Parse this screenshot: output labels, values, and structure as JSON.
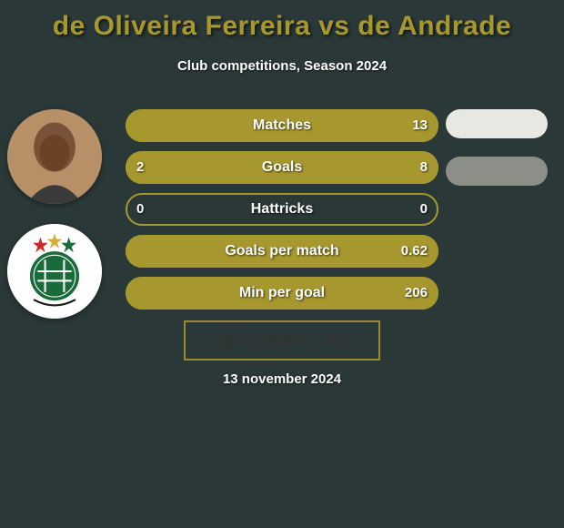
{
  "title": "de Oliveira Ferreira vs de Andrade",
  "title_color": "#a6972f",
  "subtitle": "Club competitions, Season 2024",
  "background_color": "#2b3838",
  "accent_color": "#a6972f",
  "text_color": "#ffffff",
  "date": "13 november 2024",
  "footer": {
    "brand_pre": "Fc",
    "brand_post": "Tables.com",
    "border_color": "#9a8a2e"
  },
  "side_pills": [
    {
      "color": "#e8e8e2"
    },
    {
      "color": "#8b8f88"
    }
  ],
  "metrics": [
    {
      "label": "Matches",
      "left_value": "",
      "right_value": "13",
      "left_pct": 0,
      "right_pct": 100,
      "fill_color": "#a6972f",
      "border_color": "#a6972f",
      "show_left_value": false
    },
    {
      "label": "Goals",
      "left_value": "2",
      "right_value": "8",
      "left_pct": 20,
      "right_pct": 80,
      "fill_color": "#a6972f",
      "border_color": "#a6972f",
      "show_left_value": true
    },
    {
      "label": "Hattricks",
      "left_value": "0",
      "right_value": "0",
      "left_pct": 0,
      "right_pct": 0,
      "fill_color": "#a6972f",
      "border_color": "#a6972f",
      "show_left_value": true
    },
    {
      "label": "Goals per match",
      "left_value": "",
      "right_value": "0.62",
      "left_pct": 0,
      "right_pct": 100,
      "fill_color": "#a6972f",
      "border_color": "#a6972f",
      "show_left_value": false
    },
    {
      "label": "Min per goal",
      "left_value": "",
      "right_value": "206",
      "left_pct": 0,
      "right_pct": 100,
      "fill_color": "#a6972f",
      "border_color": "#a6972f",
      "show_left_value": false
    }
  ],
  "typography": {
    "title_fontsize": 30,
    "subtitle_fontsize": 15,
    "metric_label_fontsize": 16,
    "metric_value_fontsize": 15,
    "date_fontsize": 15
  }
}
